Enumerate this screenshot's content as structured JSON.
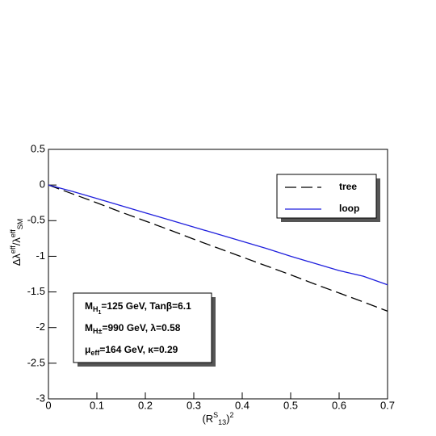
{
  "chart_data": {
    "type": "line",
    "x": [
      0,
      0.05,
      0.1,
      0.15,
      0.2,
      0.25,
      0.3,
      0.35,
      0.4,
      0.45,
      0.5,
      0.55,
      0.6,
      0.65,
      0.7
    ],
    "series": [
      {
        "name": "tree",
        "color": "#000000",
        "dash": true,
        "values": [
          0,
          -0.125,
          -0.25,
          -0.38,
          -0.505,
          -0.63,
          -0.76,
          -0.885,
          -1.01,
          -1.135,
          -1.26,
          -1.39,
          -1.515,
          -1.64,
          -1.77
        ]
      },
      {
        "name": "loop",
        "color": "#1f1fdd",
        "dash": false,
        "values": [
          0,
          -0.09,
          -0.19,
          -0.29,
          -0.39,
          -0.49,
          -0.59,
          -0.69,
          -0.79,
          -0.89,
          -1.0,
          -1.1,
          -1.2,
          -1.28,
          -1.4
        ]
      }
    ],
    "xlim": [
      0,
      0.7
    ],
    "xticks": [
      0,
      0.1,
      0.2,
      0.3,
      0.4,
      0.5,
      0.6,
      0.7
    ],
    "ylim": [
      -3,
      0.5
    ],
    "yticks": [
      0.5,
      0,
      -0.5,
      -1,
      -1.5,
      -2,
      -2.5,
      -3
    ],
    "x_label": [
      {
        "text": "(R"
      },
      {
        "text": "S",
        "shift": "sup"
      },
      {
        "text": "13",
        "shift": "sub"
      },
      {
        "text": ")"
      },
      {
        "text": "2",
        "shift": "sup"
      }
    ],
    "y_label": [
      {
        "text": "Δλ"
      },
      {
        "text": "eff",
        "shift": "sup"
      },
      {
        "text": "/λ"
      },
      {
        "text": "eff",
        "shift": "sup"
      },
      {
        "text": "SM",
        "shift": "sub"
      }
    ],
    "annotations": [
      [
        {
          "text": "M"
        },
        {
          "text": "H",
          "shift": "sub"
        },
        {
          "text": "1",
          "shift": "sub2"
        },
        {
          "text": "=125 GeV, Tanβ=6.1"
        }
      ],
      [
        {
          "text": "M"
        },
        {
          "text": "H±",
          "shift": "sub"
        },
        {
          "text": "=990 GeV,  λ=0.58"
        }
      ],
      [
        {
          "text": "μ"
        },
        {
          "text": "eff",
          "shift": "sub"
        },
        {
          "text": "=164 GeV,  κ=0.29"
        }
      ]
    ]
  }
}
